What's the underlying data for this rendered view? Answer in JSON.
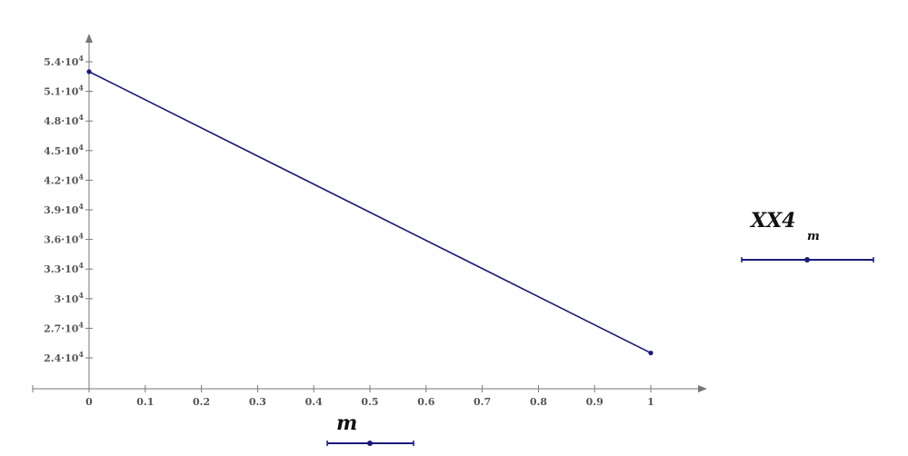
{
  "chart_data": {
    "type": "line",
    "xlabel": "m",
    "ylabel_main": "XX4",
    "ylabel_sub": "m",
    "x": [
      0,
      1
    ],
    "series": [
      {
        "values": [
          53000,
          24500
        ],
        "color": "#1a1a7a"
      }
    ],
    "xlim": [
      -0.1,
      1.1
    ],
    "ylim": [
      22000,
      56000
    ],
    "x_ticks": [
      0,
      0.1,
      0.2,
      0.3,
      0.4,
      0.5,
      0.6,
      0.7,
      0.8,
      0.9,
      1
    ],
    "x_tick_labels": [
      "0",
      "0.1",
      "0.2",
      "0.3",
      "0.4",
      "0.5",
      "0.6",
      "0.7",
      "0.8",
      "0.9",
      "1"
    ],
    "y_ticks": [
      24000,
      27000,
      30000,
      33000,
      36000,
      39000,
      42000,
      45000,
      48000,
      51000,
      54000
    ],
    "y_tick_mantissas": [
      "2.4",
      "2.7",
      "3",
      "3.3",
      "3.6",
      "3.9",
      "4.2",
      "4.5",
      "4.8",
      "5.1",
      "5.4"
    ],
    "y_tick_exponent": "4",
    "grid": false,
    "axis_color": "#777777",
    "line_color": "#1a1a7a"
  }
}
